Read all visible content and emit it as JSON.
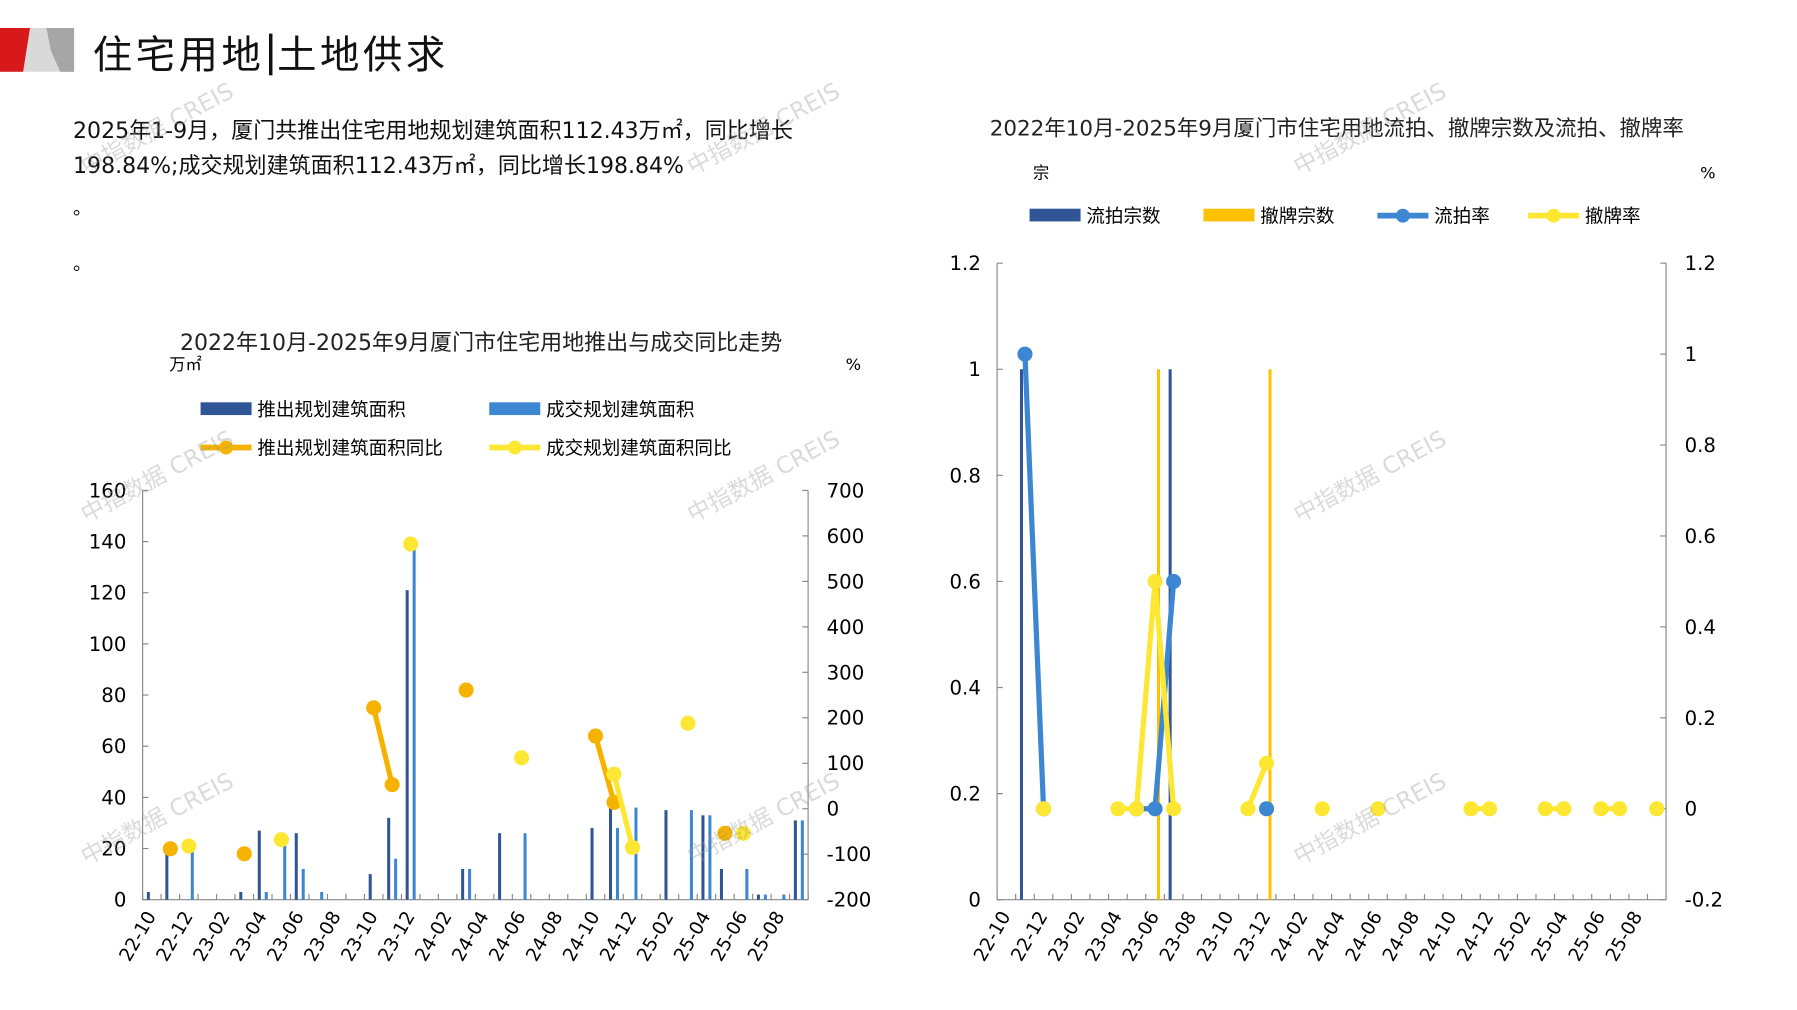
{
  "header": {
    "title_part1": "住宅用地",
    "title_part2": "土地供求"
  },
  "summary": {
    "text": "2025年1-9月，厦门共推出住宅用地规划建筑面积112.43万㎡，同比增长198.84%;成交规划建筑面积112.43万㎡，同比增长198.84%",
    "dot1": "。",
    "dot2": "。"
  },
  "watermark": "中指数据 CREIS",
  "colors": {
    "dark_blue": "#2f5597",
    "light_blue": "#3d86d1",
    "orange": "#f5b300",
    "yellow": "#fde733",
    "gold": "#ffc000"
  },
  "chart_data": [
    {
      "type": "bar+line",
      "title": "2022年10月-2025年9月厦门市住宅用地推出与成交同比走势",
      "ylabel": "万㎡",
      "y2label": "%",
      "ylim": [
        0,
        160
      ],
      "y2lim": [
        -200,
        700
      ],
      "yticks": [
        0,
        20,
        40,
        60,
        80,
        100,
        120,
        140,
        160
      ],
      "y2ticks": [
        -200,
        -100,
        0,
        100,
        200,
        300,
        400,
        500,
        600,
        700
      ],
      "categories": [
        "22-10",
        "22-11",
        "22-12",
        "23-01",
        "23-02",
        "23-03",
        "23-04",
        "23-05",
        "23-06",
        "23-07",
        "23-08",
        "23-09",
        "23-10",
        "23-11",
        "23-12",
        "24-01",
        "24-02",
        "24-03",
        "24-04",
        "24-05",
        "24-06",
        "24-07",
        "24-08",
        "24-09",
        "24-10",
        "24-11",
        "24-12",
        "25-01",
        "25-02",
        "25-03",
        "25-04",
        "25-05",
        "25-06",
        "25-07",
        "25-08",
        "25-09"
      ],
      "xtick_labels": [
        "22-10",
        "22-12",
        "23-02",
        "23-04",
        "23-06",
        "23-08",
        "23-10",
        "23-12",
        "24-02",
        "24-04",
        "24-06",
        "24-08",
        "24-10",
        "24-12",
        "25-02",
        "25-04",
        "25-06",
        "25-08"
      ],
      "series": [
        {
          "name": "推出规划建筑面积",
          "kind": "bar",
          "axis": "left",
          "values": [
            3,
            18,
            0,
            0,
            0,
            3,
            27,
            0,
            26,
            0,
            0,
            0,
            10,
            32,
            121,
            0,
            0,
            12,
            0,
            26,
            0,
            0,
            0,
            0,
            28,
            38,
            0,
            0,
            35,
            0,
            33,
            12,
            0,
            2,
            0,
            31
          ]
        },
        {
          "name": "成交规划建筑面积",
          "kind": "bar",
          "axis": "left",
          "values": [
            0,
            0,
            19,
            0,
            0,
            0,
            3,
            23,
            12,
            3,
            0,
            0,
            0,
            16,
            138,
            0,
            0,
            12,
            0,
            0,
            26,
            0,
            0,
            0,
            0,
            28,
            36,
            0,
            0,
            35,
            33,
            0,
            12,
            2,
            2,
            31
          ]
        },
        {
          "name": "推出规划建筑面积同比",
          "kind": "line",
          "axis": "right",
          "values": [
            null,
            -88,
            null,
            null,
            null,
            -99,
            null,
            null,
            null,
            null,
            null,
            null,
            222,
            53,
            null,
            null,
            null,
            261,
            null,
            null,
            null,
            null,
            null,
            null,
            160,
            14,
            null,
            null,
            null,
            null,
            null,
            -54,
            null,
            null,
            null,
            null
          ]
        },
        {
          "name": "成交规划建筑面积同比",
          "kind": "line",
          "axis": "right",
          "values": [
            null,
            null,
            -82,
            null,
            null,
            null,
            null,
            -68,
            null,
            null,
            null,
            null,
            null,
            null,
            582,
            null,
            null,
            null,
            null,
            null,
            112,
            null,
            null,
            null,
            null,
            76,
            -85,
            null,
            null,
            188,
            null,
            null,
            -54,
            null,
            null,
            null
          ]
        }
      ]
    },
    {
      "type": "bar+line",
      "title": "2022年10月-2025年9月厦门市住宅用地流拍、撤牌宗数及流拍、撤牌率",
      "ylabel": "宗",
      "y2label": "%",
      "ylim": [
        0,
        1.2
      ],
      "y2lim": [
        -0.2,
        1.2
      ],
      "yticks": [
        "0",
        "0.2",
        "0.4",
        "0.6",
        "0.8",
        "1",
        "1.2"
      ],
      "y2ticks": [
        "-0.2",
        "0",
        "0.2",
        "0.4",
        "0.6",
        "0.8",
        "1",
        "1.2"
      ],
      "xtick_labels": [
        "22-10",
        "22-12",
        "23-02",
        "23-04",
        "23-06",
        "23-08",
        "23-10",
        "23-12",
        "24-02",
        "24-04",
        "24-06",
        "24-08",
        "24-10",
        "24-12",
        "25-02",
        "25-04",
        "25-06",
        "25-08"
      ],
      "series": [
        {
          "name": "流拍宗数",
          "kind": "bar",
          "axis": "left",
          "values": [
            0,
            1,
            0,
            0,
            0,
            0,
            0,
            0,
            0,
            1,
            0,
            0,
            0,
            0,
            0,
            0,
            0,
            0,
            0,
            0,
            0,
            0,
            0,
            0,
            0,
            0,
            0,
            0,
            0,
            0,
            0,
            0,
            0,
            0,
            0,
            0
          ]
        },
        {
          "name": "撤牌宗数",
          "kind": "bar",
          "axis": "left",
          "values": [
            0,
            0,
            0,
            0,
            0,
            0,
            0,
            0,
            1,
            0,
            0,
            0,
            0,
            0,
            1,
            0,
            0,
            0,
            0,
            0,
            0,
            0,
            0,
            0,
            0,
            0,
            0,
            0,
            0,
            0,
            0,
            0,
            0,
            0,
            0,
            0
          ]
        },
        {
          "name": "流拍率",
          "kind": "line",
          "axis": "right",
          "values": [
            null,
            1,
            0,
            null,
            null,
            null,
            null,
            0,
            0,
            0.5,
            null,
            null,
            null,
            null,
            0,
            null,
            null,
            null,
            null,
            null,
            null,
            null,
            null,
            null,
            null,
            null,
            null,
            null,
            null,
            null,
            null,
            null,
            null,
            null,
            null,
            null
          ]
        },
        {
          "name": "撤牌率",
          "kind": "line",
          "axis": "right",
          "values": [
            null,
            null,
            0,
            null,
            null,
            null,
            0,
            0,
            0.5,
            0,
            null,
            null,
            null,
            0,
            0.1,
            null,
            null,
            0,
            null,
            null,
            0,
            null,
            null,
            null,
            null,
            0,
            0,
            null,
            null,
            0,
            0,
            null,
            0,
            0,
            null,
            0
          ]
        }
      ]
    }
  ]
}
